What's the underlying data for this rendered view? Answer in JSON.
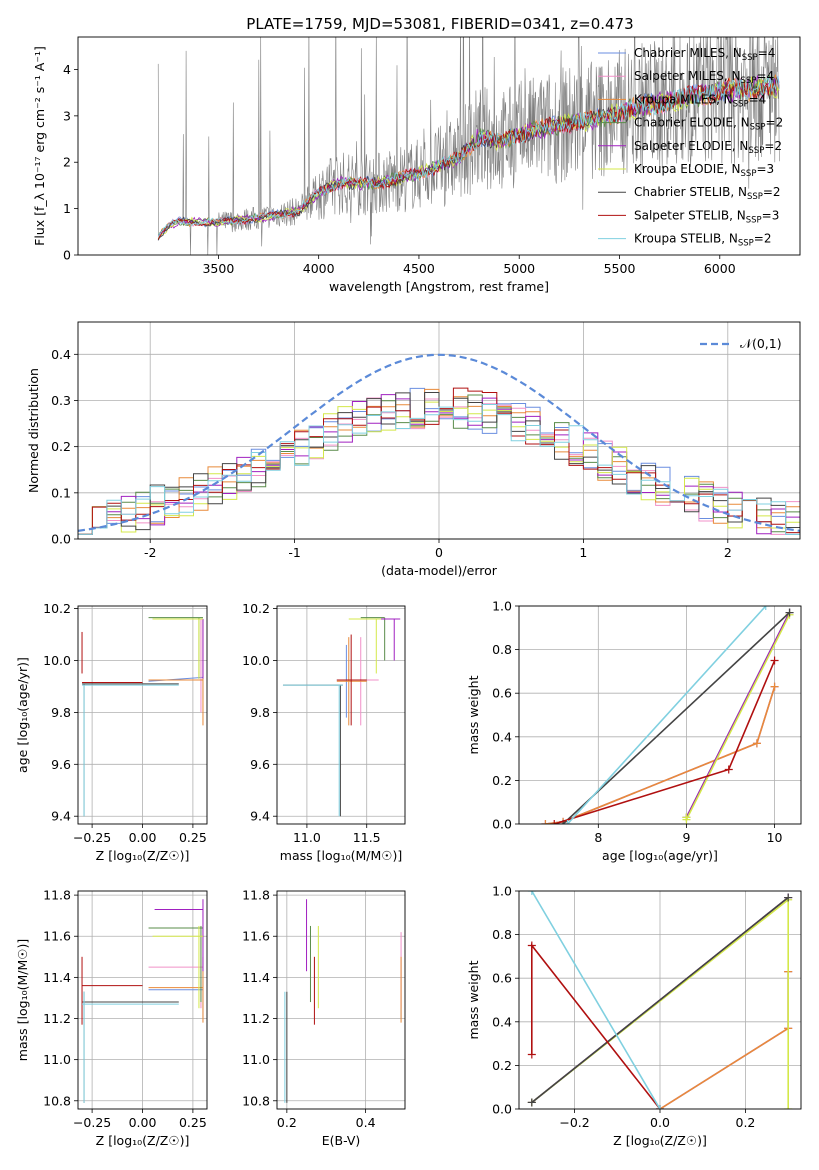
{
  "figure": {
    "title": "PLATE=1759, MJD=53081, FIBERID=0341, z=0.473"
  },
  "models": [
    {
      "name": "Chabrier MILES",
      "nssp": "4",
      "color": "#6a8ee0"
    },
    {
      "name": "Salpeter MILES",
      "nssp": "4",
      "color": "#f090c8"
    },
    {
      "name": "Kroupa MILES",
      "nssp": "4",
      "color": "#e88a3a"
    },
    {
      "name": "Chabrier ELODIE",
      "nssp": "2",
      "color": "#5a8c4a"
    },
    {
      "name": "Salpeter ELODIE",
      "nssp": "2",
      "color": "#a020c0"
    },
    {
      "name": "Kroupa ELODIE",
      "nssp": "3",
      "color": "#d4e84a"
    },
    {
      "name": "Chabrier STELIB",
      "nssp": "2",
      "color": "#444444"
    },
    {
      "name": "Salpeter STELIB",
      "nssp": "3",
      "color": "#b01010"
    },
    {
      "name": "Kroupa STELIB",
      "nssp": "2",
      "color": "#80d0e0"
    }
  ],
  "chart_data": [
    {
      "id": "spectrum",
      "type": "line",
      "xlabel": "wavelength [Angstrom, rest frame]",
      "ylabel": "Flux [f_λ 10⁻¹⁷ erg cm⁻² s⁻¹ A⁻¹]",
      "xlim": [
        2800,
        6400
      ],
      "ylim": [
        0,
        4.7
      ],
      "xticks": [
        3500,
        4000,
        4500,
        5000,
        5500,
        6000
      ],
      "yticks": [
        0,
        1,
        2,
        3,
        4
      ],
      "grid": false,
      "legend": "upper right",
      "data_start": 3200,
      "data_end": 6300,
      "model_trend": {
        "x": [
          3200,
          3260,
          3300,
          3500,
          3700,
          3900,
          4000,
          4100,
          4300,
          4500,
          4700,
          4800,
          4900,
          5000,
          5200,
          5400,
          5600,
          5800,
          6000,
          6200,
          6300
        ],
        "y": [
          0.4,
          0.65,
          0.72,
          0.7,
          0.8,
          0.95,
          1.35,
          1.55,
          1.55,
          1.75,
          2.1,
          2.55,
          2.45,
          2.6,
          2.8,
          2.95,
          3.2,
          3.35,
          3.55,
          3.6,
          3.65
        ]
      },
      "data_color": "#7f7f7f"
    },
    {
      "id": "residuals",
      "type": "line",
      "xlabel": "(data-model)/error",
      "ylabel": "Normed distribution",
      "xlim": [
        -2.5,
        2.5
      ],
      "ylim": [
        0,
        0.47
      ],
      "xticks": [
        -2,
        -1,
        0,
        1,
        2
      ],
      "yticks": [
        0.0,
        0.1,
        0.2,
        0.3,
        0.4
      ],
      "grid": true,
      "legend": "upper right",
      "bin_width": 0.1,
      "reference": {
        "name": "𝒩(0,1)",
        "mu": 0,
        "sigma": 1,
        "color": "#5b8ad8"
      }
    },
    {
      "id": "age_vs_z",
      "type": "scatter",
      "xlabel": "Z [log₁₀(Z/Z☉)]",
      "ylabel": "age  [log₁₀(age/yr)]",
      "xlim": [
        -0.32,
        0.32
      ],
      "ylim": [
        9.37,
        10.21
      ],
      "xticks": [
        -0.25,
        0.0,
        0.25
      ],
      "yticks": [
        9.4,
        9.6,
        9.8,
        10.0,
        10.2
      ],
      "grid": true,
      "bars": [
        {
          "model": 0,
          "x": [
            0.03,
            0.3
          ],
          "y": [
            9.92,
            9.935
          ],
          "vx": 0.3,
          "vy": [
            9.85,
            10.16
          ]
        },
        {
          "model": 1,
          "x": [
            0.03,
            0.3
          ],
          "y": [
            9.925,
            9.925
          ],
          "vx": 0.29,
          "vy": [
            9.8,
            10.16
          ]
        },
        {
          "model": 2,
          "x": [
            0.03,
            0.3
          ],
          "y": [
            9.925,
            9.925
          ],
          "vx": 0.3,
          "vy": [
            9.75,
            10.16
          ]
        },
        {
          "model": 3,
          "x": [
            0.03,
            0.3
          ],
          "y": [
            10.165,
            10.165
          ],
          "vx": 0.28,
          "vy": [
            9.93,
            10.165
          ]
        },
        {
          "model": 4,
          "x": [
            0.05,
            0.3
          ],
          "y": [
            10.16,
            10.16
          ],
          "vx": 0.3,
          "vy": [
            9.93,
            10.16
          ]
        },
        {
          "model": 5,
          "x": [
            0.05,
            0.3
          ],
          "y": [
            10.16,
            10.16
          ],
          "vx": 0.28,
          "vy": [
            9.93,
            10.16
          ]
        },
        {
          "model": 6,
          "x": [
            -0.3,
            0.18
          ],
          "y": [
            9.91,
            9.91
          ],
          "vx": -0.29,
          "vy": [
            9.4,
            9.91
          ]
        },
        {
          "model": 7,
          "x": [
            -0.3,
            -0.0
          ],
          "y": [
            9.915,
            9.915
          ],
          "vx": -0.3,
          "vy": [
            9.95,
            10.11
          ]
        },
        {
          "model": 8,
          "x": [
            -0.3,
            0.18
          ],
          "y": [
            9.905,
            9.905
          ],
          "vx": -0.29,
          "vy": [
            9.4,
            9.905
          ]
        }
      ]
    },
    {
      "id": "age_vs_mass",
      "type": "scatter",
      "xlabel": "mass [log₁₀(M/M☉)]",
      "ylabel": "",
      "xlim": [
        10.75,
        11.82
      ],
      "ylim": [
        9.37,
        10.21
      ],
      "xticks": [
        11.0,
        11.5
      ],
      "yticks": [
        9.4,
        9.6,
        9.8,
        10.0,
        10.2
      ],
      "grid": true,
      "bars": [
        {
          "model": 0,
          "x": [
            11.25,
            11.45
          ],
          "y": [
            9.925,
            9.925
          ],
          "vx": 11.33,
          "vy": [
            9.78,
            10.06
          ]
        },
        {
          "model": 1,
          "x": [
            11.3,
            11.6
          ],
          "y": [
            9.925,
            9.925
          ],
          "vx": 11.45,
          "vy": [
            9.75,
            10.09
          ]
        },
        {
          "model": 2,
          "x": [
            11.25,
            11.5
          ],
          "y": [
            9.92,
            9.92
          ],
          "vx": 11.35,
          "vy": [
            9.75,
            10.09
          ]
        },
        {
          "model": 3,
          "x": [
            11.45,
            11.65
          ],
          "y": [
            10.165,
            10.165
          ],
          "vx": 11.65,
          "vy": [
            10.0,
            10.165
          ]
        },
        {
          "model": 4,
          "x": [
            11.55,
            11.78
          ],
          "y": [
            10.16,
            10.16
          ],
          "vx": 11.73,
          "vy": [
            10.0,
            10.16
          ]
        },
        {
          "model": 5,
          "x": [
            11.35,
            11.62
          ],
          "y": [
            10.16,
            10.16
          ],
          "vx": 11.58,
          "vy": [
            9.95,
            10.16
          ]
        },
        {
          "model": 6,
          "x": [
            10.8,
            11.3
          ],
          "y": [
            9.905,
            9.905
          ],
          "vx": 11.28,
          "vy": [
            9.4,
            9.905
          ]
        },
        {
          "model": 7,
          "x": [
            11.25,
            11.5
          ],
          "y": [
            9.925,
            9.925
          ],
          "vx": 11.37,
          "vy": [
            9.75,
            10.1
          ]
        },
        {
          "model": 8,
          "x": [
            10.8,
            11.3
          ],
          "y": [
            9.905,
            9.905
          ],
          "vx": 11.27,
          "vy": [
            9.4,
            9.905
          ]
        }
      ]
    },
    {
      "id": "weight_vs_age",
      "type": "line",
      "xlabel": "age  [log₁₀(age/yr)]",
      "ylabel": "mass weight",
      "xlim": [
        7.1,
        10.3
      ],
      "ylim": [
        0,
        1.0
      ],
      "xticks": [
        8,
        9,
        10
      ],
      "yticks": [
        0.0,
        0.2,
        0.4,
        0.6,
        0.8,
        1.0
      ],
      "grid": true,
      "series": [
        {
          "model": 0,
          "x": [
            7.4,
            7.6,
            9.8,
            10.0
          ],
          "y": [
            0.0,
            0.01,
            0.37,
            0.63
          ]
        },
        {
          "model": 1,
          "x": [
            7.4,
            7.6,
            9.8,
            10.0
          ],
          "y": [
            0.0,
            0.01,
            0.37,
            0.63
          ]
        },
        {
          "model": 2,
          "x": [
            7.4,
            7.6,
            9.8,
            10.0
          ],
          "y": [
            0.0,
            0.01,
            0.37,
            0.63
          ]
        },
        {
          "model": 3,
          "x": [
            9.0,
            10.17
          ],
          "y": [
            0.03,
            0.97
          ]
        },
        {
          "model": 4,
          "x": [
            9.0,
            10.17
          ],
          "y": [
            0.03,
            0.97
          ]
        },
        {
          "model": 5,
          "x": [
            9.0,
            9.0,
            10.17
          ],
          "y": [
            0.03,
            0.02,
            0.96
          ]
        },
        {
          "model": 6,
          "x": [
            7.6,
            10.17
          ],
          "y": [
            0.0,
            0.97
          ]
        },
        {
          "model": 7,
          "x": [
            7.5,
            9.48,
            10.0
          ],
          "y": [
            0.0,
            0.25,
            0.75
          ]
        },
        {
          "model": 8,
          "x": [
            7.65,
            9.9
          ],
          "y": [
            0.0,
            1.0
          ]
        }
      ]
    },
    {
      "id": "mass_vs_z",
      "type": "scatter",
      "xlabel": "Z [log₁₀(Z/Z☉)]",
      "ylabel": "mass [log₁₀(M/M☉)]",
      "xlim": [
        -0.32,
        0.32
      ],
      "ylim": [
        10.76,
        11.82
      ],
      "xticks": [
        -0.25,
        0.0,
        0.25
      ],
      "yticks": [
        10.8,
        11.0,
        11.2,
        11.4,
        11.6,
        11.8
      ],
      "grid": true,
      "bars": [
        {
          "model": 0,
          "x": [
            0.03,
            0.3
          ],
          "y": [
            11.34,
            11.34
          ],
          "vx": 0.3,
          "vy": [
            11.2,
            11.5
          ]
        },
        {
          "model": 1,
          "x": [
            0.03,
            0.3
          ],
          "y": [
            11.45,
            11.45
          ],
          "vx": 0.29,
          "vy": [
            11.25,
            11.6
          ]
        },
        {
          "model": 2,
          "x": [
            0.03,
            0.3
          ],
          "y": [
            11.35,
            11.35
          ],
          "vx": 0.3,
          "vy": [
            11.18,
            11.5
          ]
        },
        {
          "model": 3,
          "x": [
            0.03,
            0.3
          ],
          "y": [
            11.64,
            11.64
          ],
          "vx": 0.29,
          "vy": [
            11.28,
            11.65
          ]
        },
        {
          "model": 4,
          "x": [
            0.06,
            0.3
          ],
          "y": [
            11.73,
            11.73
          ],
          "vx": 0.3,
          "vy": [
            11.43,
            11.78
          ]
        },
        {
          "model": 5,
          "x": [
            0.05,
            0.3
          ],
          "y": [
            11.6,
            11.6
          ],
          "vx": 0.28,
          "vy": [
            11.25,
            11.65
          ]
        },
        {
          "model": 6,
          "x": [
            -0.3,
            0.18
          ],
          "y": [
            11.28,
            11.28
          ],
          "vx": -0.29,
          "vy": [
            10.79,
            11.33
          ]
        },
        {
          "model": 7,
          "x": [
            -0.3,
            0.0
          ],
          "y": [
            11.36,
            11.36
          ],
          "vx": -0.3,
          "vy": [
            11.17,
            11.5
          ]
        },
        {
          "model": 8,
          "x": [
            -0.3,
            0.18
          ],
          "y": [
            11.27,
            11.27
          ],
          "vx": -0.29,
          "vy": [
            10.79,
            11.33
          ]
        }
      ]
    },
    {
      "id": "mass_vs_ebv",
      "type": "scatter",
      "xlabel": "E(B-V)",
      "ylabel": "",
      "xlim": [
        0.175,
        0.5
      ],
      "ylim": [
        10.76,
        11.82
      ],
      "xticks": [
        0.2,
        0.4
      ],
      "yticks": [
        10.8,
        11.0,
        11.2,
        11.4,
        11.6,
        11.8
      ],
      "grid": true,
      "bars": [
        {
          "model": 0,
          "x": [
            0.49,
            0.49
          ],
          "y": [
            11.34,
            11.34
          ],
          "vx": 0.49,
          "vy": [
            11.2,
            11.5
          ]
        },
        {
          "model": 1,
          "x": [
            0.49,
            0.49
          ],
          "y": [
            11.45,
            11.45
          ],
          "vx": 0.49,
          "vy": [
            11.25,
            11.62
          ]
        },
        {
          "model": 2,
          "x": [
            0.49,
            0.49
          ],
          "y": [
            11.35,
            11.35
          ],
          "vx": 0.49,
          "vy": [
            11.18,
            11.5
          ]
        },
        {
          "model": 3,
          "x": [
            0.26,
            0.26
          ],
          "y": [
            11.64,
            11.64
          ],
          "vx": 0.26,
          "vy": [
            11.28,
            11.65
          ]
        },
        {
          "model": 4,
          "x": [
            0.25,
            0.25
          ],
          "y": [
            11.73,
            11.73
          ],
          "vx": 0.25,
          "vy": [
            11.43,
            11.78
          ]
        },
        {
          "model": 5,
          "x": [
            0.28,
            0.28
          ],
          "y": [
            11.6,
            11.6
          ],
          "vx": 0.28,
          "vy": [
            11.25,
            11.65
          ]
        },
        {
          "model": 6,
          "x": [
            0.2,
            0.2
          ],
          "y": [
            11.28,
            11.28
          ],
          "vx": 0.2,
          "vy": [
            10.79,
            11.33
          ]
        },
        {
          "model": 7,
          "x": [
            0.27,
            0.27
          ],
          "y": [
            11.36,
            11.36
          ],
          "vx": 0.27,
          "vy": [
            11.17,
            11.5
          ]
        },
        {
          "model": 8,
          "x": [
            0.195,
            0.195
          ],
          "y": [
            11.27,
            11.27
          ],
          "vx": 0.195,
          "vy": [
            10.79,
            11.33
          ]
        }
      ]
    },
    {
      "id": "weight_vs_z",
      "type": "line",
      "xlabel": "Z [log₁₀(Z/Z☉)]",
      "ylabel": "mass weight",
      "xlim": [
        -0.33,
        0.33
      ],
      "ylim": [
        0,
        1.0
      ],
      "xticks": [
        -0.2,
        0.0,
        0.2
      ],
      "yticks": [
        0.0,
        0.2,
        0.4,
        0.6,
        0.8,
        1.0
      ],
      "grid": true,
      "series": [
        {
          "model": 0,
          "x": [
            0.0,
            0.3,
            0.3
          ],
          "y": [
            0.0,
            0.37,
            0.63
          ]
        },
        {
          "model": 1,
          "x": [
            0.0,
            0.3,
            0.3
          ],
          "y": [
            0.0,
            0.37,
            0.63
          ]
        },
        {
          "model": 2,
          "x": [
            0.0,
            0.3,
            0.3
          ],
          "y": [
            0.0,
            0.37,
            0.63
          ]
        },
        {
          "model": 3,
          "x": [
            -0.3,
            0.3
          ],
          "y": [
            0.03,
            0.97
          ]
        },
        {
          "model": 4,
          "x": [
            -0.3,
            0.3
          ],
          "y": [
            0.03,
            0.97
          ]
        },
        {
          "model": 5,
          "x": [
            -0.3,
            0.3,
            0.3
          ],
          "y": [
            0.03,
            0.96,
            0.0
          ]
        },
        {
          "model": 6,
          "x": [
            -0.3,
            0.3
          ],
          "y": [
            0.03,
            0.97
          ]
        },
        {
          "model": 7,
          "x": [
            -0.3,
            -0.3,
            0.0
          ],
          "y": [
            0.25,
            0.75,
            0.0
          ]
        },
        {
          "model": 8,
          "x": [
            -0.3,
            0.0
          ],
          "y": [
            1.0,
            0.0
          ]
        }
      ]
    }
  ]
}
